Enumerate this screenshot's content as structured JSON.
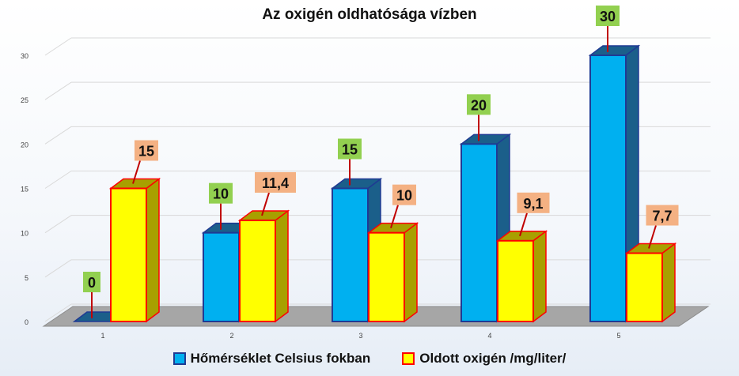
{
  "chart_data": {
    "type": "bar",
    "title": "Az oxigén oldhatósága vízben",
    "categories": [
      "1",
      "2",
      "3",
      "4",
      "5"
    ],
    "series": [
      {
        "name": "Hőmérséklet Celsius fokban",
        "values": [
          0,
          10,
          15,
          20,
          30
        ],
        "labels": [
          "0",
          "10",
          "15",
          "20",
          "30"
        ]
      },
      {
        "name": "Oldott oxigén /mg/liter/",
        "values": [
          15,
          11.4,
          10,
          9.1,
          7.7
        ],
        "labels": [
          "15",
          "11,4",
          "10",
          "9,1",
          "7,7"
        ]
      }
    ],
    "ylim": [
      0,
      30
    ],
    "yticks": [
      "0",
      "5",
      "10",
      "15",
      "20",
      "25",
      "30"
    ],
    "grid": true,
    "legend": "bottom"
  },
  "colors": {
    "series1_fill": "#00b0f0",
    "series1_border": "#1f3a93",
    "series1_side": "#1b5f8a",
    "series2_fill": "#ffff00",
    "series2_border": "#ff0000",
    "series2_side": "#a8a000",
    "label_series1_bg": "#92d050",
    "label_series2_bg": "#f4b183",
    "floor": "#a6a6a6",
    "leader": "#c00000"
  }
}
